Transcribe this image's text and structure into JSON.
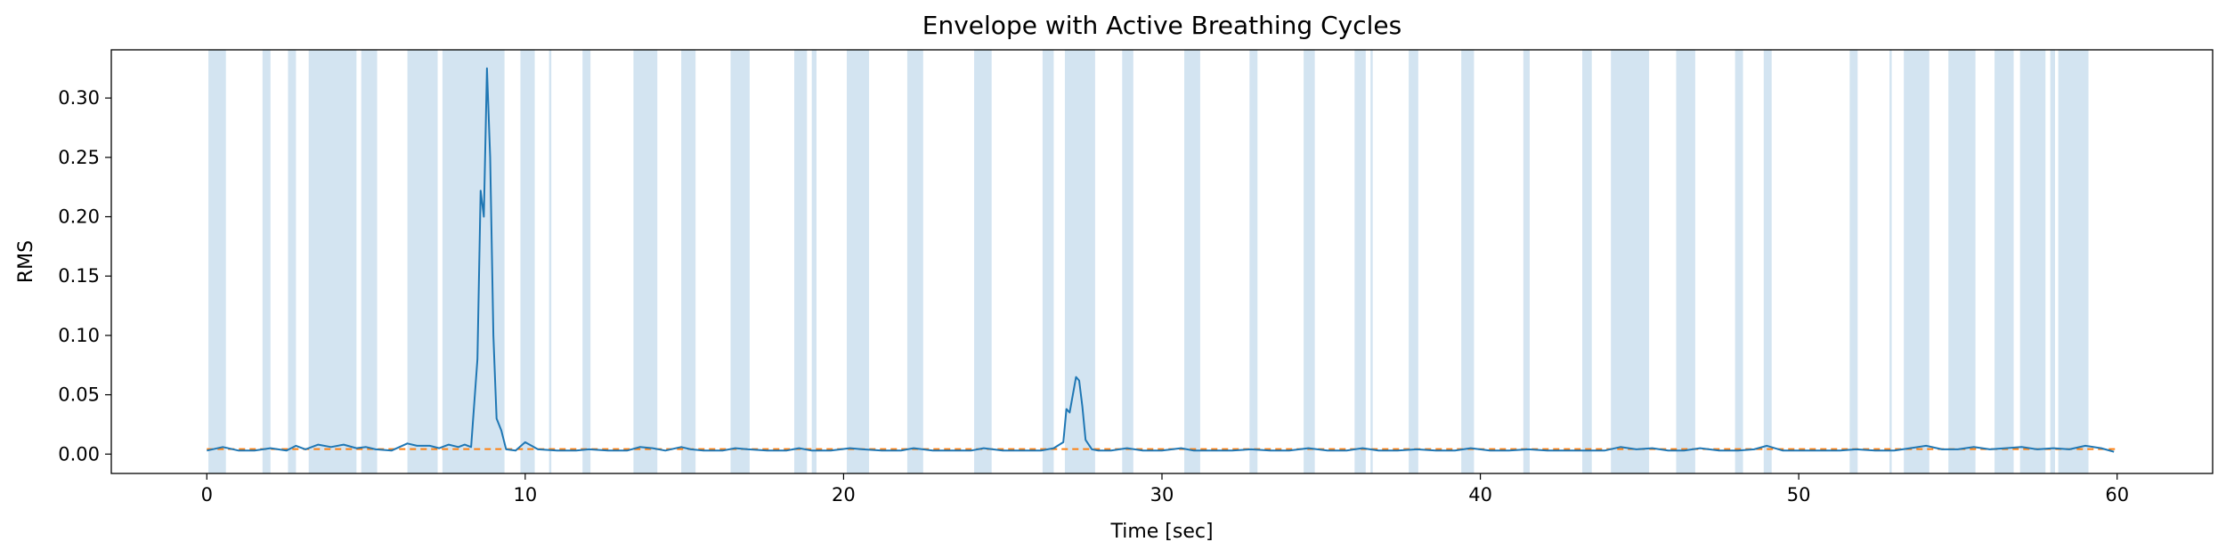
{
  "chart_data": {
    "type": "line",
    "title": "Envelope with Active Breathing Cycles",
    "xlabel": "Time [sec]",
    "ylabel": "RMS",
    "xlim": [
      -3,
      63
    ],
    "ylim": [
      -0.0163,
      0.3406
    ],
    "xticks": [
      0,
      10,
      20,
      30,
      40,
      50,
      60
    ],
    "yticks": [
      0.0,
      0.05,
      0.1,
      0.15,
      0.2,
      0.25,
      0.3
    ],
    "ytick_labels": [
      "0.00",
      "0.05",
      "0.10",
      "0.15",
      "0.20",
      "0.25",
      "0.30"
    ],
    "grid": false,
    "colors": {
      "envelope": "#1f77b4",
      "threshold": "#ff7f0e",
      "active_span": "#aecde5"
    },
    "threshold": 0.0042,
    "active_cycles": [
      [
        0.05,
        0.6
      ],
      [
        1.75,
        2.0
      ],
      [
        2.55,
        2.8
      ],
      [
        3.2,
        4.7
      ],
      [
        4.85,
        5.35
      ],
      [
        6.3,
        7.25
      ],
      [
        7.4,
        9.35
      ],
      [
        9.85,
        10.3
      ],
      [
        10.75,
        10.82
      ],
      [
        11.8,
        12.05
      ],
      [
        13.4,
        14.15
      ],
      [
        14.9,
        15.35
      ],
      [
        16.45,
        17.05
      ],
      [
        18.45,
        18.85
      ],
      [
        19.0,
        19.15
      ],
      [
        20.1,
        20.8
      ],
      [
        22.0,
        22.5
      ],
      [
        24.1,
        24.65
      ],
      [
        26.25,
        26.6
      ],
      [
        26.95,
        27.9
      ],
      [
        28.75,
        29.1
      ],
      [
        30.7,
        31.2
      ],
      [
        32.75,
        33.0
      ],
      [
        34.45,
        34.8
      ],
      [
        36.05,
        36.4
      ],
      [
        36.55,
        36.62
      ],
      [
        37.75,
        38.05
      ],
      [
        39.4,
        39.8
      ],
      [
        41.35,
        41.55
      ],
      [
        43.2,
        43.5
      ],
      [
        44.1,
        45.3
      ],
      [
        46.15,
        46.75
      ],
      [
        48.0,
        48.25
      ],
      [
        48.9,
        49.15
      ],
      [
        51.6,
        51.85
      ],
      [
        52.85,
        52.92
      ],
      [
        53.3,
        54.1
      ],
      [
        54.7,
        55.55
      ],
      [
        56.15,
        56.75
      ],
      [
        56.95,
        57.75
      ],
      [
        57.9,
        58.05
      ],
      [
        58.15,
        59.1
      ]
    ],
    "series": [
      {
        "style": "solid",
        "x": [
          0,
          0.5,
          1.0,
          1.5,
          2.0,
          2.5,
          2.8,
          3.1,
          3.5,
          3.9,
          4.3,
          4.7,
          5.0,
          5.3,
          5.8,
          6.3,
          6.6,
          7.0,
          7.3,
          7.6,
          7.9,
          8.1,
          8.3,
          8.5,
          8.6,
          8.7,
          8.8,
          8.9,
          9.0,
          9.1,
          9.25,
          9.4,
          9.7,
          10.0,
          10.4,
          11.0,
          11.6,
          12.0,
          12.6,
          13.2,
          13.6,
          14.0,
          14.4,
          14.9,
          15.2,
          15.6,
          16.2,
          16.6,
          17.0,
          17.6,
          18.2,
          18.6,
          19.0,
          19.6,
          20.2,
          20.6,
          21.2,
          21.8,
          22.2,
          22.8,
          23.4,
          24.0,
          24.4,
          25.0,
          25.6,
          26.2,
          26.6,
          26.9,
          27.0,
          27.1,
          27.2,
          27.3,
          27.4,
          27.5,
          27.6,
          27.8,
          28.0,
          28.4,
          28.9,
          29.4,
          30.0,
          30.6,
          31.0,
          31.6,
          32.2,
          32.8,
          33.4,
          34.0,
          34.6,
          35.2,
          35.8,
          36.3,
          36.8,
          37.4,
          38.0,
          38.6,
          39.2,
          39.7,
          40.3,
          40.9,
          41.5,
          42.1,
          42.7,
          43.3,
          43.9,
          44.4,
          44.9,
          45.4,
          45.9,
          46.4,
          46.9,
          47.5,
          48.1,
          48.6,
          49.0,
          49.5,
          50.1,
          50.7,
          51.3,
          51.8,
          52.4,
          53.0,
          53.5,
          54.0,
          54.5,
          55.0,
          55.5,
          56.0,
          56.5,
          57.0,
          57.5,
          58.0,
          58.5,
          59.0,
          59.5,
          59.9
        ],
        "y": [
          0.003,
          0.006,
          0.003,
          0.003,
          0.005,
          0.003,
          0.007,
          0.004,
          0.008,
          0.006,
          0.008,
          0.005,
          0.006,
          0.004,
          0.003,
          0.009,
          0.007,
          0.007,
          0.005,
          0.008,
          0.006,
          0.008,
          0.006,
          0.08,
          0.222,
          0.2,
          0.325,
          0.25,
          0.1,
          0.03,
          0.02,
          0.004,
          0.003,
          0.01,
          0.004,
          0.003,
          0.003,
          0.004,
          0.003,
          0.003,
          0.006,
          0.005,
          0.003,
          0.006,
          0.004,
          0.003,
          0.003,
          0.005,
          0.004,
          0.003,
          0.003,
          0.005,
          0.003,
          0.003,
          0.005,
          0.004,
          0.003,
          0.003,
          0.005,
          0.003,
          0.003,
          0.003,
          0.005,
          0.003,
          0.003,
          0.003,
          0.005,
          0.01,
          0.038,
          0.035,
          0.05,
          0.065,
          0.062,
          0.04,
          0.012,
          0.004,
          0.003,
          0.003,
          0.005,
          0.003,
          0.003,
          0.005,
          0.003,
          0.003,
          0.003,
          0.004,
          0.003,
          0.003,
          0.005,
          0.003,
          0.003,
          0.005,
          0.003,
          0.003,
          0.004,
          0.003,
          0.003,
          0.005,
          0.003,
          0.003,
          0.004,
          0.003,
          0.003,
          0.003,
          0.003,
          0.006,
          0.004,
          0.005,
          0.003,
          0.003,
          0.005,
          0.003,
          0.003,
          0.004,
          0.007,
          0.003,
          0.003,
          0.003,
          0.003,
          0.004,
          0.003,
          0.003,
          0.005,
          0.007,
          0.004,
          0.004,
          0.006,
          0.004,
          0.005,
          0.006,
          0.004,
          0.005,
          0.004,
          0.007,
          0.005,
          0.002
        ]
      }
    ]
  }
}
